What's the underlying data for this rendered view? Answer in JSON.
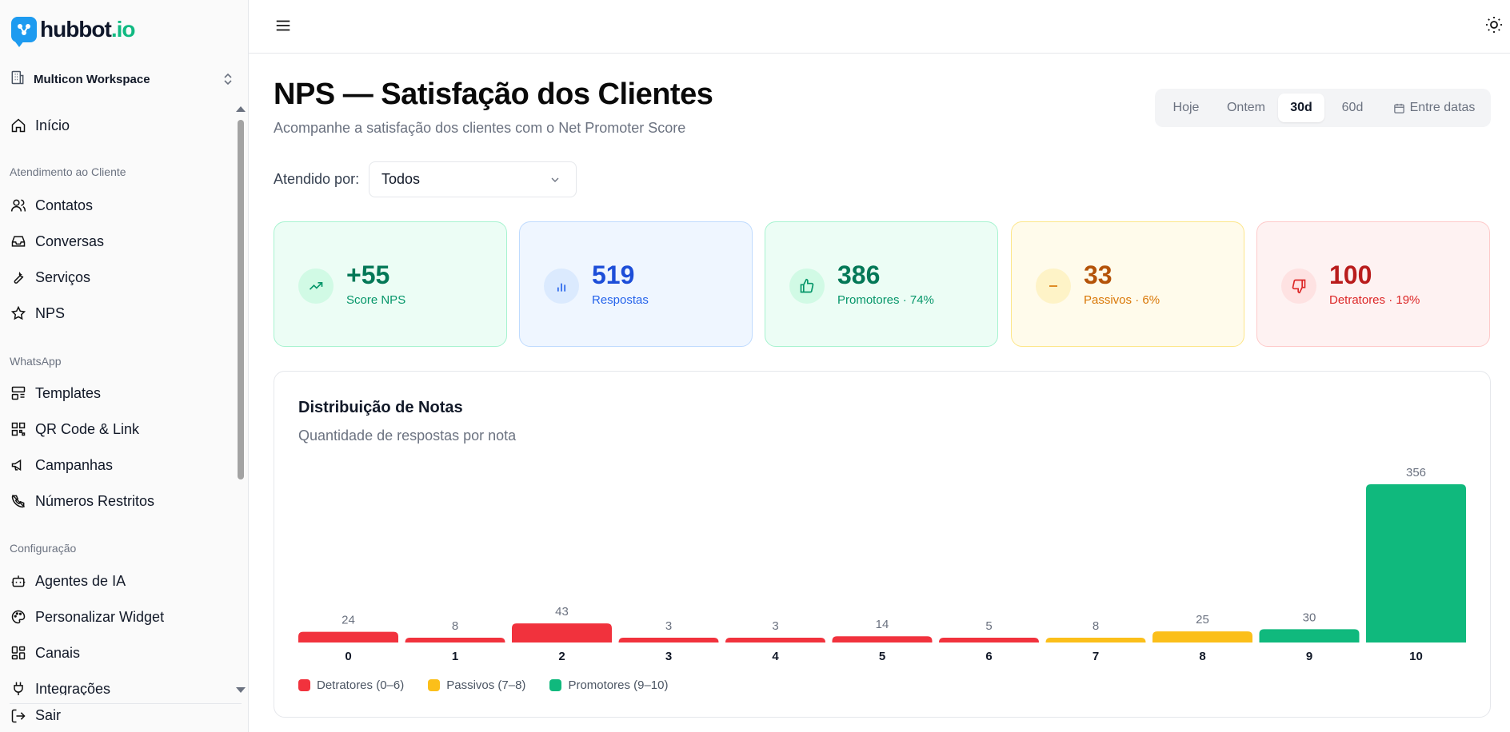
{
  "brand": {
    "name": "hubbot",
    "suffix": ".io"
  },
  "workspace": {
    "label": "Multicon Workspace"
  },
  "sidebar": {
    "home": "Início",
    "sections": [
      {
        "label": "Atendimento ao Cliente",
        "items": [
          "Contatos",
          "Conversas",
          "Serviços",
          "NPS"
        ]
      },
      {
        "label": "WhatsApp",
        "items": [
          "Templates",
          "QR Code & Link",
          "Campanhas",
          "Números Restritos"
        ]
      },
      {
        "label": "Configuração",
        "items": [
          "Agentes de IA",
          "Personalizar Widget",
          "Canais",
          "Integrações"
        ]
      }
    ],
    "logout": "Sair"
  },
  "page": {
    "title": "NPS — Satisfação dos Clientes",
    "subtitle": "Acompanhe a satisfação dos clientes com o Net Promoter Score"
  },
  "range": {
    "options": [
      "Hoje",
      "Ontem",
      "30d",
      "60d",
      "Entre datas"
    ],
    "selected": "30d"
  },
  "filter": {
    "label": "Atendido por:",
    "value": "Todos"
  },
  "kpis": [
    {
      "value": "+55",
      "label": "Score NPS",
      "icon": "trending-up-icon"
    },
    {
      "value": "519",
      "label": "Respostas",
      "icon": "bar-chart-icon"
    },
    {
      "value": "386",
      "label": "Promotores · 74%",
      "icon": "thumbs-up-icon"
    },
    {
      "value": "33",
      "label": "Passivos · 6%",
      "icon": "minus-icon"
    },
    {
      "value": "100",
      "label": "Detratores · 19%",
      "icon": "thumbs-down-icon"
    }
  ],
  "colors": {
    "detractor": "#f1323d",
    "passive": "#fbbf1a",
    "promoter": "#10b97d"
  },
  "chart_data": {
    "type": "bar",
    "title": "Distribuição de Notas",
    "subtitle": "Quantidade de respostas por nota",
    "categories": [
      "0",
      "1",
      "2",
      "3",
      "4",
      "5",
      "6",
      "7",
      "8",
      "9",
      "10"
    ],
    "values": [
      24,
      8,
      43,
      3,
      3,
      14,
      5,
      8,
      25,
      30,
      356
    ],
    "groups": [
      "detractor",
      "detractor",
      "detractor",
      "detractor",
      "detractor",
      "detractor",
      "detractor",
      "passive",
      "passive",
      "promoter",
      "promoter"
    ],
    "legend": [
      {
        "key": "detractor",
        "label": "Detratores (0–6)"
      },
      {
        "key": "passive",
        "label": "Passivos (7–8)"
      },
      {
        "key": "promoter",
        "label": "Promotores (9–10)"
      }
    ],
    "ylim": [
      0,
      356
    ],
    "grid": false,
    "legend_position": "bottom-left"
  }
}
